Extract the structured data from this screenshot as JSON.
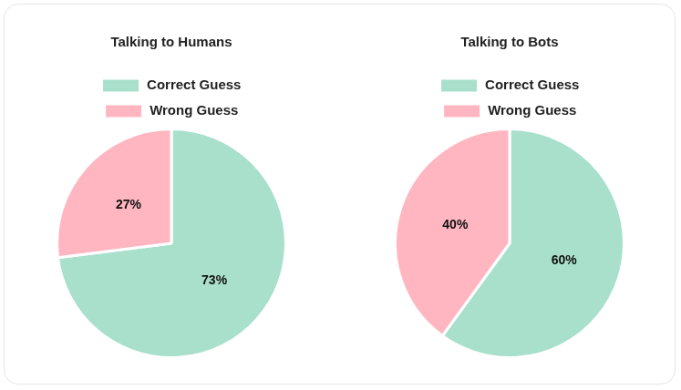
{
  "chart_data": [
    {
      "type": "pie",
      "title": "Talking to Humans",
      "categories": [
        "Correct Guess",
        "Wrong Guess"
      ],
      "values": [
        73,
        27
      ],
      "value_labels": [
        "73%",
        "27%"
      ],
      "colors": [
        "#a8e0cb",
        "#ffb6c1"
      ],
      "data_labels": true,
      "legend": "top"
    },
    {
      "type": "pie",
      "title": "Talking to Bots",
      "categories": [
        "Correct Guess",
        "Wrong Guess"
      ],
      "values": [
        60,
        40
      ],
      "value_labels": [
        "60%",
        "40%"
      ],
      "colors": [
        "#a8e0cb",
        "#ffb6c1"
      ],
      "data_labels": true,
      "legend": "top"
    }
  ]
}
